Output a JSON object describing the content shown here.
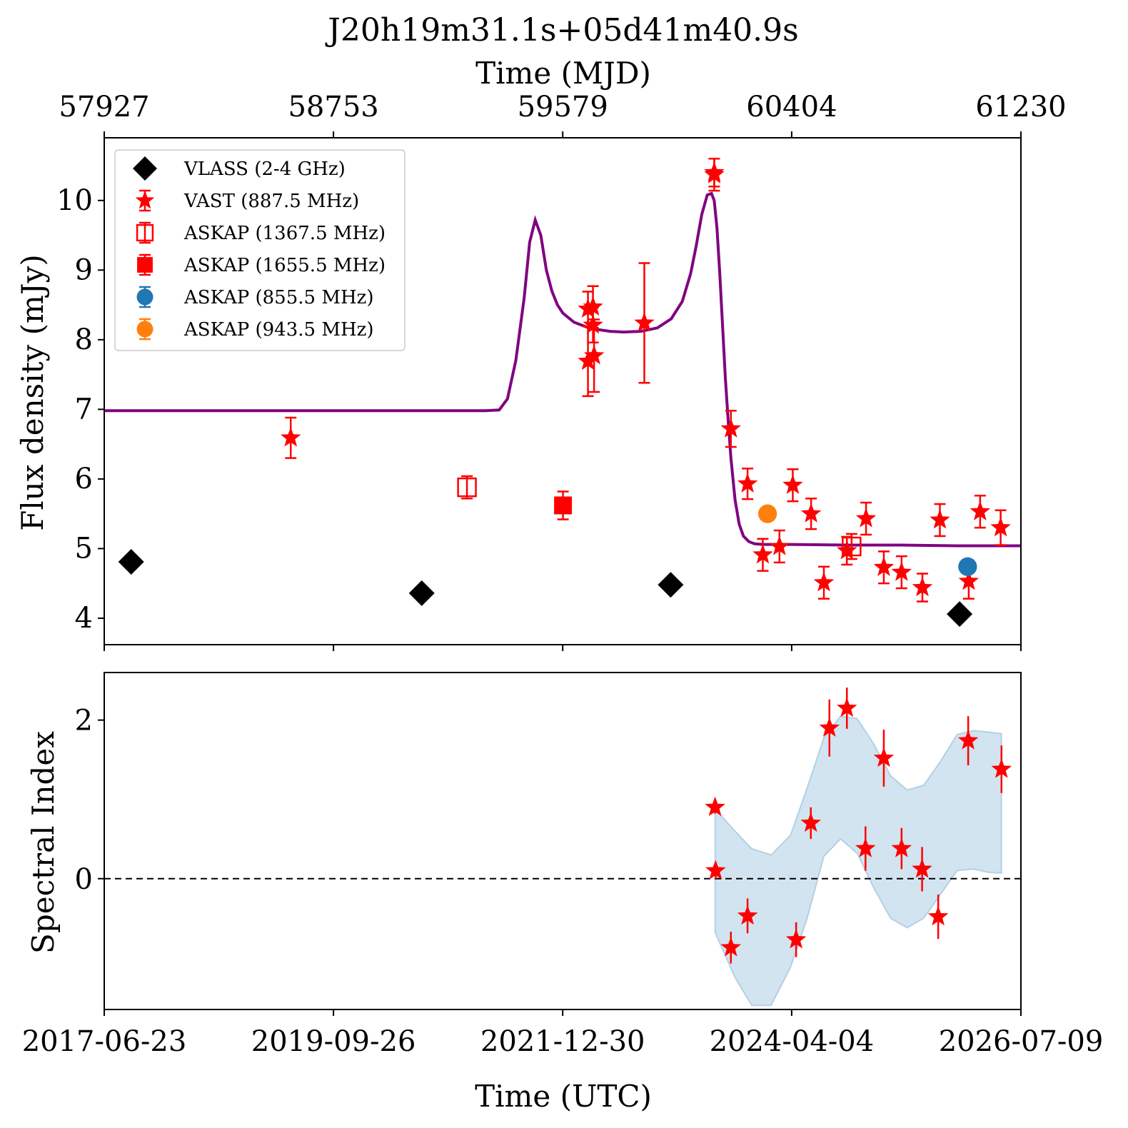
{
  "chart_data": [
    {
      "type": "scatter",
      "panel": "top",
      "title": "J20h19m31.1s+05d41m40.9s",
      "xlabel_top": "Time (MJD)",
      "ylabel": "Flux density (mJy)",
      "x_top_ticks": [
        "57927",
        "58753",
        "59579",
        "60404",
        "61230"
      ],
      "x_ticks_mjd": [
        57927,
        58753,
        59579,
        60404,
        61230
      ],
      "xlim_mjd": [
        57927,
        61230
      ],
      "ylim": [
        3.62,
        10.9
      ],
      "y_ticks": [
        4,
        5,
        6,
        7,
        8,
        9,
        10
      ],
      "y_tick_labels": [
        "4",
        "5",
        "6",
        "7",
        "8",
        "9",
        "10"
      ],
      "legend_position": "upper-left",
      "colors": {
        "black": "#000000",
        "red": "#ff0000",
        "blue": "#1f77b4",
        "orange": "#ff7f0e",
        "purple": "#800080"
      },
      "series": [
        {
          "name": "VLASS (2-4 GHz)",
          "marker": "diamond",
          "color": "#000000",
          "filled": true,
          "points": [
            {
              "x": 58024,
              "y": 4.81,
              "err": 0.08
            },
            {
              "x": 59071,
              "y": 4.36,
              "err": 0.09
            },
            {
              "x": 59968,
              "y": 4.48,
              "err": 0.08
            },
            {
              "x": 61009,
              "y": 4.06,
              "err": 0.08
            }
          ]
        },
        {
          "name": "VAST (887.5 MHz)",
          "marker": "star",
          "color": "#ff0000",
          "filled": true,
          "points": [
            {
              "x": 58599,
              "y": 6.59,
              "err": 0.29
            },
            {
              "x": 59670,
              "y": 7.69,
              "err": 0.5
            },
            {
              "x": 59670,
              "y": 8.44,
              "err": 0.25
            },
            {
              "x": 59688,
              "y": 8.47,
              "err": 0.3
            },
            {
              "x": 59688,
              "y": 8.21,
              "err": 0.25
            },
            {
              "x": 59692,
              "y": 7.77,
              "err": 0.52
            },
            {
              "x": 59873,
              "y": 8.24,
              "err": 0.86
            },
            {
              "x": 60125,
              "y": 10.37,
              "err": 0.23
            },
            {
              "x": 60125,
              "y": 10.4,
              "err": 0.2
            },
            {
              "x": 60185,
              "y": 6.72,
              "err": 0.26
            },
            {
              "x": 60245,
              "y": 5.93,
              "err": 0.22
            },
            {
              "x": 60300,
              "y": 4.91,
              "err": 0.23
            },
            {
              "x": 60360,
              "y": 5.03,
              "err": 0.23
            },
            {
              "x": 60408,
              "y": 5.91,
              "err": 0.23
            },
            {
              "x": 60474,
              "y": 5.5,
              "err": 0.22
            },
            {
              "x": 60520,
              "y": 4.51,
              "err": 0.23
            },
            {
              "x": 60603,
              "y": 4.97,
              "err": 0.2
            },
            {
              "x": 60672,
              "y": 5.43,
              "err": 0.23
            },
            {
              "x": 60736,
              "y": 4.73,
              "err": 0.23
            },
            {
              "x": 60800,
              "y": 4.66,
              "err": 0.23
            },
            {
              "x": 60875,
              "y": 4.44,
              "err": 0.2
            },
            {
              "x": 60938,
              "y": 5.41,
              "err": 0.23
            },
            {
              "x": 61042,
              "y": 4.53,
              "err": 0.25
            },
            {
              "x": 61083,
              "y": 5.53,
              "err": 0.23
            },
            {
              "x": 61157,
              "y": 5.3,
              "err": 0.25
            }
          ]
        },
        {
          "name": "ASKAP (1367.5 MHz)",
          "marker": "square",
          "color": "#ff0000",
          "filled": false,
          "points": [
            {
              "x": 59234,
              "y": 5.88,
              "err": 0.16
            },
            {
              "x": 60620,
              "y": 5.03,
              "err": 0.18
            }
          ]
        },
        {
          "name": "ASKAP (1655.5 MHz)",
          "marker": "square",
          "color": "#ff0000",
          "filled": true,
          "points": [
            {
              "x": 59580,
              "y": 5.62,
              "err": 0.2
            }
          ]
        },
        {
          "name": "ASKAP (855.5 MHz)",
          "marker": "circle",
          "color": "#1f77b4",
          "filled": true,
          "points": [
            {
              "x": 61038,
              "y": 4.74,
              "err": 0.05
            }
          ]
        },
        {
          "name": "ASKAP (943.5 MHz)",
          "marker": "circle",
          "color": "#ff7f0e",
          "filled": true,
          "points": [
            {
              "x": 60317,
              "y": 5.5,
              "err": 0.08
            }
          ]
        }
      ],
      "model_curve": {
        "color": "#800080",
        "x": [
          57927,
          58500,
          59000,
          59300,
          59350,
          59380,
          59410,
          59440,
          59460,
          59480,
          59500,
          59520,
          59540,
          59560,
          59580,
          59620,
          59680,
          59750,
          59800,
          59860,
          59920,
          59970,
          60010,
          60040,
          60060,
          60080,
          60100,
          60115,
          60125,
          60135,
          60145,
          60155,
          60165,
          60175,
          60185,
          60200,
          60215,
          60230,
          60250,
          60270,
          60300,
          60400,
          60600,
          60800,
          61000,
          61230
        ],
        "y": [
          6.98,
          6.98,
          6.98,
          6.98,
          6.99,
          7.15,
          7.7,
          8.6,
          9.4,
          9.72,
          9.5,
          9.0,
          8.7,
          8.5,
          8.38,
          8.25,
          8.16,
          8.12,
          8.11,
          8.12,
          8.17,
          8.3,
          8.55,
          8.95,
          9.35,
          9.8,
          10.08,
          10.1,
          10.0,
          9.6,
          8.95,
          8.2,
          7.45,
          6.85,
          6.3,
          5.7,
          5.35,
          5.18,
          5.1,
          5.07,
          5.06,
          5.06,
          5.05,
          5.05,
          5.04,
          5.04
        ]
      }
    },
    {
      "type": "scatter",
      "panel": "bottom",
      "xlabel": "Time (UTC)",
      "ylabel": "Spectral Index",
      "x_ticks_mjd": [
        57927,
        58753,
        59579,
        60404,
        61230
      ],
      "x_tick_labels": [
        "2017-06-23",
        "2019-09-26",
        "2021-12-30",
        "2024-04-04",
        "2026-07-09"
      ],
      "xlim_mjd": [
        57927,
        61230
      ],
      "ylim": [
        -1.65,
        2.6
      ],
      "y_ticks": [
        0,
        2
      ],
      "y_tick_labels": [
        "0",
        "2"
      ],
      "reference_line": 0,
      "points": [
        {
          "x": 60128,
          "y": 0.9,
          "err": 0.08
        },
        {
          "x": 60130,
          "y": 0.1,
          "err": 0.1
        },
        {
          "x": 60185,
          "y": -0.87,
          "err": 0.2
        },
        {
          "x": 60245,
          "y": -0.47,
          "err": 0.22
        },
        {
          "x": 60420,
          "y": -0.77,
          "err": 0.22
        },
        {
          "x": 60473,
          "y": 0.7,
          "err": 0.2
        },
        {
          "x": 60540,
          "y": 1.9,
          "err": 0.36
        },
        {
          "x": 60603,
          "y": 2.15,
          "err": 0.26
        },
        {
          "x": 60670,
          "y": 0.38,
          "err": 0.28
        },
        {
          "x": 60736,
          "y": 1.52,
          "err": 0.36
        },
        {
          "x": 60800,
          "y": 0.38,
          "err": 0.26
        },
        {
          "x": 60874,
          "y": 0.12,
          "err": 0.28
        },
        {
          "x": 60932,
          "y": -0.48,
          "err": 0.28
        },
        {
          "x": 61040,
          "y": 1.74,
          "err": 0.31
        },
        {
          "x": 61160,
          "y": 1.38,
          "err": 0.3
        }
      ],
      "band": {
        "x": [
          60128,
          60200,
          60260,
          60330,
          60400,
          60460,
          60520,
          60580,
          60640,
          60700,
          60760,
          60820,
          60880,
          60940,
          61000,
          61060,
          61110,
          61160
        ],
        "upper": [
          0.88,
          0.6,
          0.38,
          0.3,
          0.55,
          1.15,
          1.78,
          2.05,
          2.02,
          1.7,
          1.3,
          1.12,
          1.18,
          1.48,
          1.82,
          1.87,
          1.85,
          1.83
        ],
        "lower": [
          -0.68,
          -1.25,
          -1.6,
          -1.6,
          -1.12,
          -0.5,
          0.28,
          0.5,
          0.32,
          -0.12,
          -0.5,
          -0.62,
          -0.5,
          -0.2,
          0.1,
          0.12,
          0.08,
          0.07
        ]
      }
    }
  ]
}
